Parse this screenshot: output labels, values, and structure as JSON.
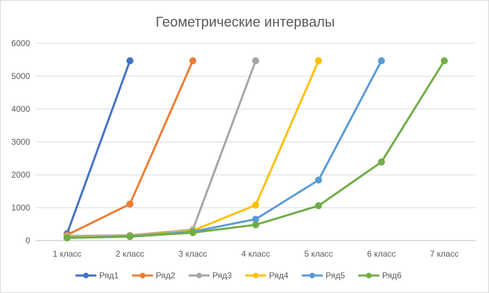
{
  "chart_data": {
    "type": "line",
    "title": "Геометрические интервалы",
    "xlabel": "",
    "ylabel": "",
    "categories": [
      "1 класс",
      "2 класс",
      "3 класс",
      "4 класс",
      "5 класс",
      "6 класс",
      "7 класс"
    ],
    "ylim": [
      0,
      6000
    ],
    "yticks": [
      0,
      1000,
      2000,
      3000,
      4000,
      5000,
      6000
    ],
    "grid": "horizontal",
    "legend": "bottom",
    "series": [
      {
        "name": "Ряд1",
        "color": "#4472C4",
        "values": [
          210,
          5470,
          null,
          null,
          null,
          null,
          null
        ]
      },
      {
        "name": "Ряд2",
        "color": "#ED7D31",
        "values": [
          170,
          1110,
          5470,
          null,
          null,
          null,
          null
        ]
      },
      {
        "name": "Ряд3",
        "color": "#A5A5A5",
        "values": [
          140,
          160,
          330,
          5470,
          null,
          null,
          null
        ]
      },
      {
        "name": "Ряд4",
        "color": "#FFC000",
        "values": [
          110,
          140,
          300,
          1080,
          5470,
          null,
          null
        ]
      },
      {
        "name": "Ряд5",
        "color": "#5B9BD5",
        "values": [
          90,
          130,
          270,
          650,
          1840,
          5470,
          null
        ]
      },
      {
        "name": "Ряд6",
        "color": "#70AD47",
        "values": [
          80,
          120,
          240,
          480,
          1060,
          2390,
          5470
        ]
      }
    ]
  }
}
